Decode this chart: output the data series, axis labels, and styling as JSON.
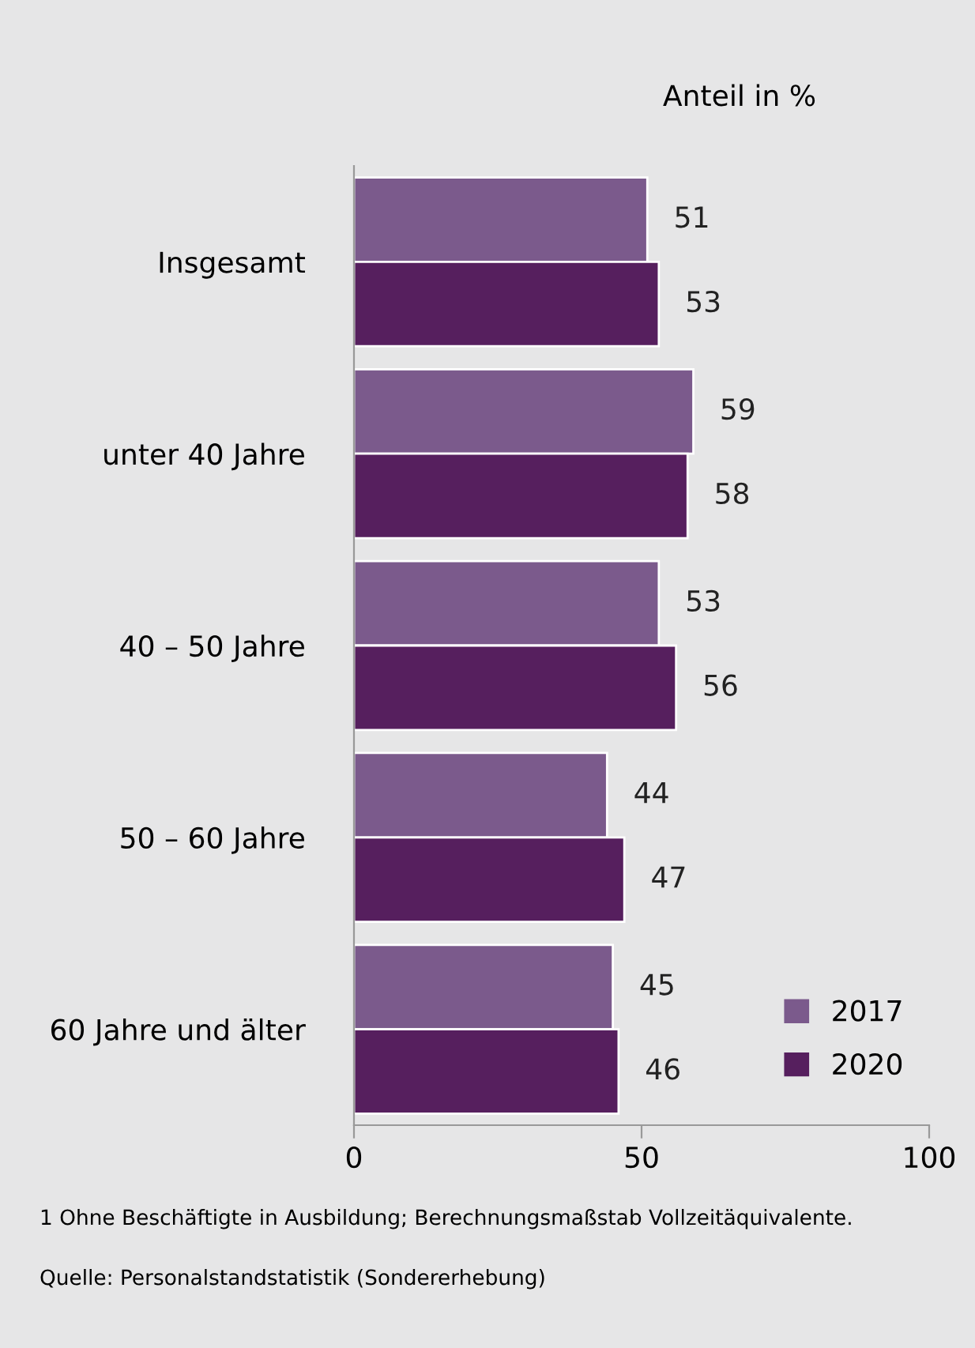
{
  "chart_data": {
    "type": "bar",
    "orientation": "horizontal",
    "title": "Anteil in %",
    "categories": [
      "Insgesamt",
      "unter 40 Jahre",
      "40 – 50 Jahre",
      "50 – 60 Jahre",
      "60 Jahre und älter"
    ],
    "series": [
      {
        "name": "2017",
        "color": "#7b5a8c",
        "values": [
          51,
          59,
          53,
          44,
          45
        ]
      },
      {
        "name": "2020",
        "color": "#561f5e",
        "values": [
          53,
          58,
          56,
          47,
          46
        ]
      }
    ],
    "xlim": [
      0,
      100
    ],
    "xticks": [
      0,
      50,
      100
    ],
    "data_labels": true,
    "grid": false,
    "legend": "bottom right",
    "annotations": [
      "1 Ohne Beschäftigte in Ausbildung; Berechnungsmaßstab Vollzeitäquivalente.",
      "Quelle: Personalstandstatistik (Sondererhebung)"
    ]
  }
}
